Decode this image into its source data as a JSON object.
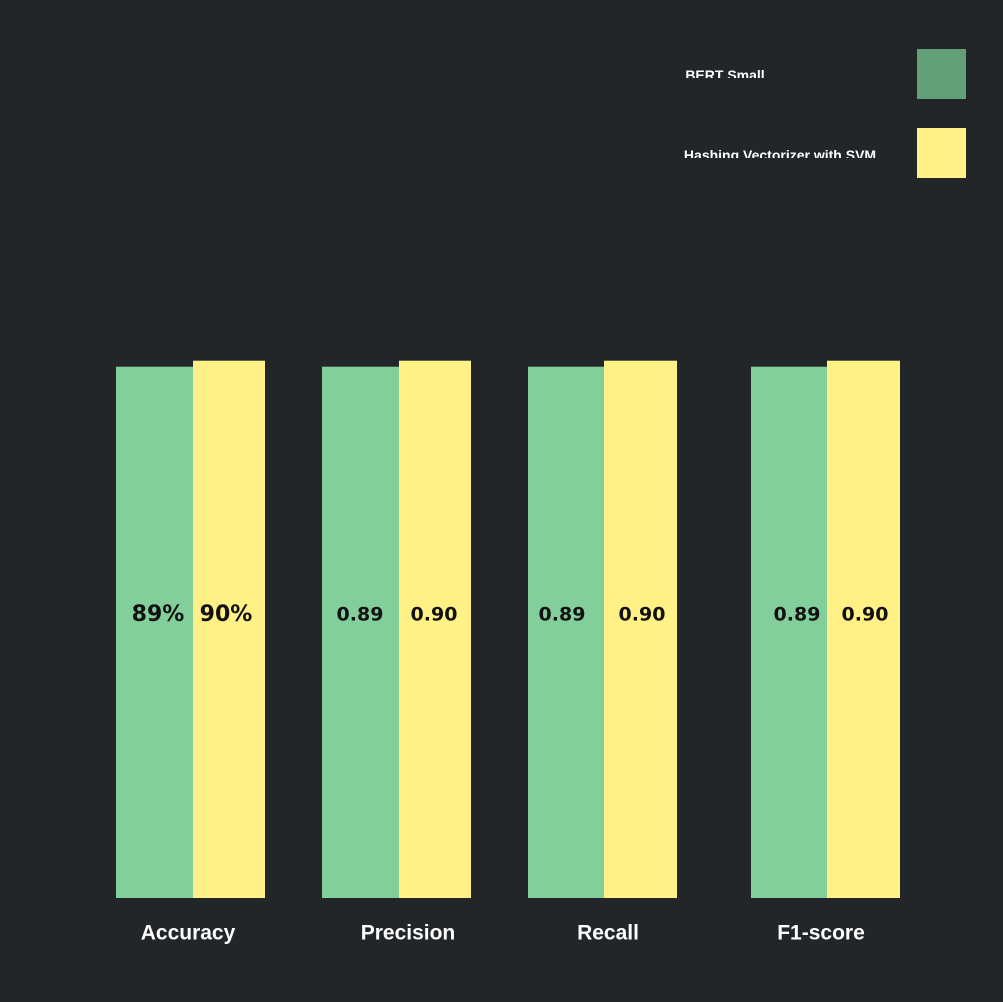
{
  "chart_data": {
    "type": "bar",
    "categories": [
      "Accuracy",
      "Precision",
      "Recall",
      "F1-score"
    ],
    "series": [
      {
        "name": "BERT Small",
        "values": [
          0.89,
          0.89,
          0.89,
          0.89
        ],
        "labels": [
          "89%",
          "0.89",
          "0.89",
          "0.89"
        ],
        "color": "#82cf9b",
        "legend_color": "#63a078"
      },
      {
        "name": "Hashing Vectorizer with SVM",
        "values": [
          0.9,
          0.9,
          0.9,
          0.9
        ],
        "labels": [
          "90%",
          "0.90",
          "0.90",
          "0.90"
        ],
        "color": "#fff185",
        "legend_color": "#fff185"
      }
    ],
    "ylim": [
      0,
      1
    ],
    "grid": false,
    "legend_position": "top-right",
    "background": "#222629"
  }
}
